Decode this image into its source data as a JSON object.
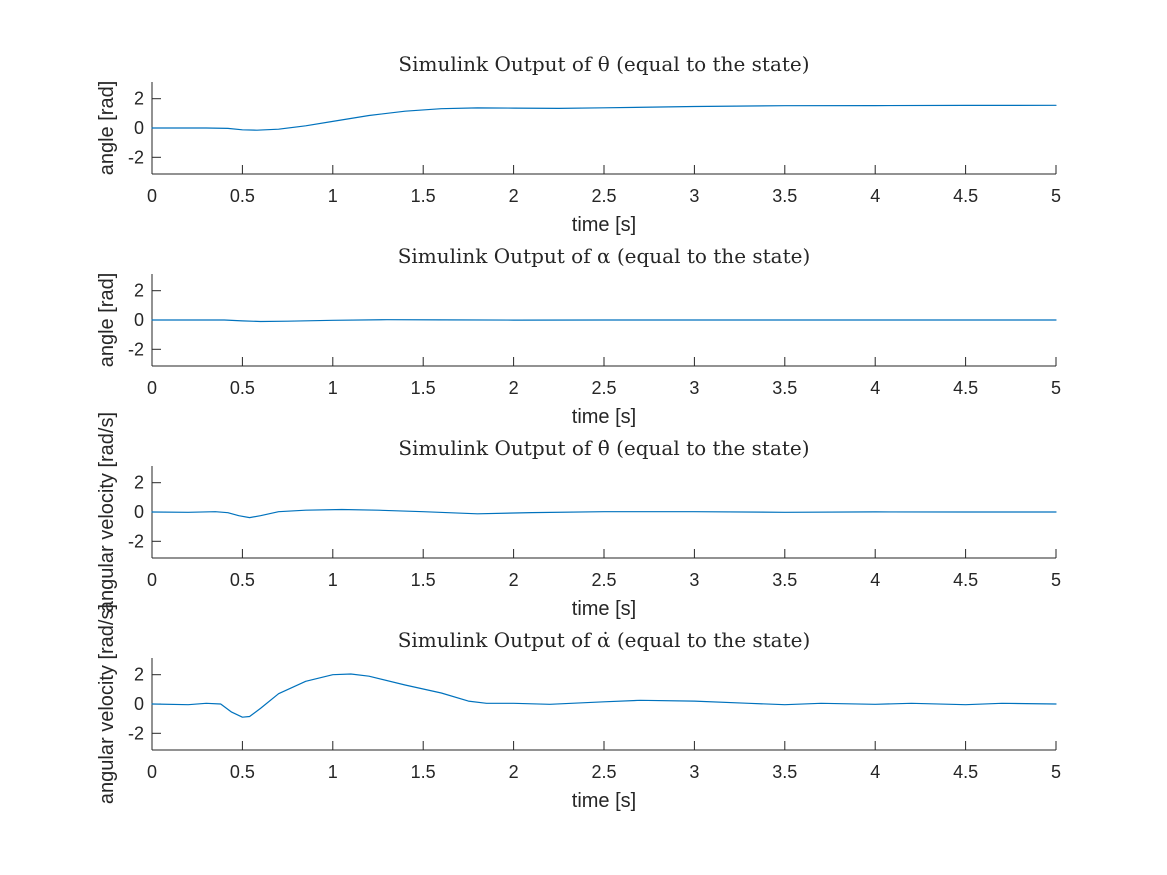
{
  "chart_data": [
    {
      "type": "line",
      "title": "Simulink Output of θ (equal to the state)",
      "xlabel": "time [s]",
      "ylabel": "angle [rad]",
      "xlim": [
        0,
        5
      ],
      "ylim": [
        -3.14,
        3.14
      ],
      "xticks": [
        "0",
        "0.5",
        "1",
        "1.5",
        "2",
        "2.5",
        "3",
        "3.5",
        "4",
        "4.5",
        "5"
      ],
      "yticks": [
        "2",
        "0",
        "-2"
      ],
      "grid": false,
      "series": [
        {
          "color": "#0072BD",
          "x": [
            0,
            0.3,
            0.42,
            0.5,
            0.58,
            0.7,
            0.85,
            1.0,
            1.2,
            1.4,
            1.6,
            1.8,
            2.0,
            2.25,
            2.5,
            3.0,
            3.5,
            4.0,
            4.5,
            5.0
          ],
          "y": [
            0,
            0,
            -0.03,
            -0.12,
            -0.15,
            -0.08,
            0.15,
            0.45,
            0.85,
            1.15,
            1.32,
            1.37,
            1.36,
            1.34,
            1.38,
            1.47,
            1.52,
            1.53,
            1.54,
            1.55
          ]
        }
      ]
    },
    {
      "type": "line",
      "title": "Simulink Output of α (equal to the state)",
      "xlabel": "time [s]",
      "ylabel": "angle [rad]",
      "xlim": [
        0,
        5
      ],
      "ylim": [
        -3.14,
        3.14
      ],
      "xticks": [
        "0",
        "0.5",
        "1",
        "1.5",
        "2",
        "2.5",
        "3",
        "3.5",
        "4",
        "4.5",
        "5"
      ],
      "yticks": [
        "2",
        "0",
        "-2"
      ],
      "grid": false,
      "series": [
        {
          "color": "#0072BD",
          "x": [
            0,
            0.4,
            0.5,
            0.6,
            0.75,
            1.0,
            1.3,
            1.6,
            2.0,
            2.5,
            3.0,
            4.0,
            5.0
          ],
          "y": [
            0,
            0,
            -0.06,
            -0.1,
            -0.08,
            -0.02,
            0.02,
            0.01,
            -0.01,
            0,
            0,
            0,
            0
          ]
        }
      ]
    },
    {
      "type": "line",
      "title": "Simulink Output of θ̇ (equal to the state)",
      "xlabel": "time [s]",
      "ylabel": "angular velocity [rad/s]",
      "xlim": [
        0,
        5
      ],
      "ylim": [
        -3.14,
        3.14
      ],
      "xticks": [
        "0",
        "0.5",
        "1",
        "1.5",
        "2",
        "2.5",
        "3",
        "3.5",
        "4",
        "4.5",
        "5"
      ],
      "yticks": [
        "2",
        "0",
        "-2"
      ],
      "grid": false,
      "series": [
        {
          "color": "#0072BD",
          "x": [
            0,
            0.2,
            0.35,
            0.42,
            0.48,
            0.54,
            0.6,
            0.7,
            0.85,
            1.05,
            1.25,
            1.5,
            1.8,
            2.1,
            2.5,
            3.0,
            3.5,
            4.0,
            4.5,
            5.0
          ],
          "y": [
            0,
            -0.02,
            0.02,
            -0.05,
            -0.25,
            -0.38,
            -0.25,
            0.02,
            0.12,
            0.17,
            0.12,
            0.02,
            -0.12,
            -0.04,
            0.02,
            0.02,
            -0.02,
            0.01,
            0,
            0
          ]
        }
      ]
    },
    {
      "type": "line",
      "title": "Simulink Output of α̇ (equal to the state)",
      "xlabel": "time [s]",
      "ylabel": "angular velocity [rad/s]",
      "xlim": [
        0,
        5
      ],
      "ylim": [
        -3.14,
        3.14
      ],
      "xticks": [
        "0",
        "0.5",
        "1",
        "1.5",
        "2",
        "2.5",
        "3",
        "3.5",
        "4",
        "4.5",
        "5"
      ],
      "yticks": [
        "2",
        "0",
        "-2"
      ],
      "grid": false,
      "series": [
        {
          "color": "#0072BD",
          "x": [
            0,
            0.2,
            0.3,
            0.38,
            0.44,
            0.5,
            0.54,
            0.6,
            0.7,
            0.85,
            1.0,
            1.1,
            1.2,
            1.4,
            1.6,
            1.75,
            1.85,
            2.0,
            2.2,
            2.5,
            2.7,
            3.0,
            3.3,
            3.5,
            3.7,
            4.0,
            4.2,
            4.5,
            4.7,
            5.0
          ],
          "y": [
            0,
            -0.05,
            0.05,
            0,
            -0.55,
            -0.9,
            -0.85,
            -0.3,
            0.7,
            1.55,
            2.0,
            2.05,
            1.9,
            1.3,
            0.75,
            0.2,
            0.05,
            0.05,
            -0.02,
            0.15,
            0.25,
            0.2,
            0.05,
            -0.05,
            0.05,
            -0.02,
            0.05,
            -0.05,
            0.05,
            0
          ]
        }
      ]
    }
  ]
}
